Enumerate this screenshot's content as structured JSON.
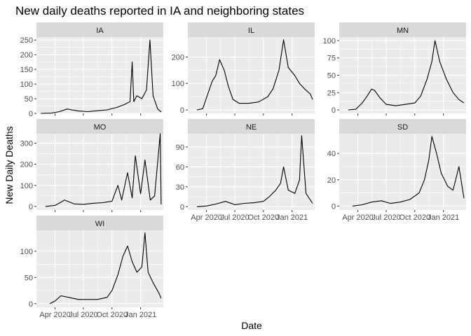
{
  "chart_data": {
    "type": "line",
    "title": "New daily deaths reported in IA and neighboring states",
    "xlabel": "Date",
    "ylabel": "New Daily Deaths",
    "grid": true,
    "legend": "none",
    "x_range": [
      "2020-02-01",
      "2021-03-15"
    ],
    "x_ticks": [
      {
        "date": "2020-04-01",
        "label": "Apr 2020"
      },
      {
        "date": "2020-07-01",
        "label": "Jul 2020"
      },
      {
        "date": "2020-10-01",
        "label": "Oct 2020"
      },
      {
        "date": "2021-01-01",
        "label": "Jan 2021"
      }
    ],
    "panels": [
      {
        "name": "IA",
        "ylim": [
          0,
          260
        ],
        "y_ticks": [
          0,
          50,
          100,
          150,
          200,
          250
        ],
        "series": [
          {
            "date": "2020-02-15",
            "value": 0
          },
          {
            "date": "2020-03-20",
            "value": 1
          },
          {
            "date": "2020-04-15",
            "value": 6
          },
          {
            "date": "2020-05-10",
            "value": 15
          },
          {
            "date": "2020-05-25",
            "value": 12
          },
          {
            "date": "2020-06-15",
            "value": 8
          },
          {
            "date": "2020-07-15",
            "value": 6
          },
          {
            "date": "2020-08-15",
            "value": 9
          },
          {
            "date": "2020-09-15",
            "value": 12
          },
          {
            "date": "2020-10-15",
            "value": 20
          },
          {
            "date": "2020-11-10",
            "value": 30
          },
          {
            "date": "2020-11-28",
            "value": 40
          },
          {
            "date": "2020-12-05",
            "value": 175
          },
          {
            "date": "2020-12-10",
            "value": 40
          },
          {
            "date": "2020-12-20",
            "value": 60
          },
          {
            "date": "2021-01-05",
            "value": 50
          },
          {
            "date": "2021-01-20",
            "value": 80
          },
          {
            "date": "2021-01-31",
            "value": 250
          },
          {
            "date": "2021-02-10",
            "value": 60
          },
          {
            "date": "2021-02-25",
            "value": 15
          },
          {
            "date": "2021-03-08",
            "value": 5
          }
        ]
      },
      {
        "name": "IL",
        "ylim": [
          -13,
          275
        ],
        "y_ticks": [
          0,
          100,
          200
        ],
        "series": [
          {
            "date": "2020-03-01",
            "value": 0
          },
          {
            "date": "2020-03-20",
            "value": 5
          },
          {
            "date": "2020-04-05",
            "value": 60
          },
          {
            "date": "2020-04-20",
            "value": 110
          },
          {
            "date": "2020-05-01",
            "value": 130
          },
          {
            "date": "2020-05-13",
            "value": 190
          },
          {
            "date": "2020-05-28",
            "value": 150
          },
          {
            "date": "2020-06-10",
            "value": 90
          },
          {
            "date": "2020-06-25",
            "value": 40
          },
          {
            "date": "2020-07-15",
            "value": 25
          },
          {
            "date": "2020-08-15",
            "value": 25
          },
          {
            "date": "2020-09-15",
            "value": 30
          },
          {
            "date": "2020-10-15",
            "value": 50
          },
          {
            "date": "2020-11-01",
            "value": 80
          },
          {
            "date": "2020-11-20",
            "value": 150
          },
          {
            "date": "2020-12-05",
            "value": 265
          },
          {
            "date": "2020-12-20",
            "value": 160
          },
          {
            "date": "2021-01-10",
            "value": 130
          },
          {
            "date": "2021-01-25",
            "value": 100
          },
          {
            "date": "2021-02-10",
            "value": 80
          },
          {
            "date": "2021-03-01",
            "value": 60
          },
          {
            "date": "2021-03-08",
            "value": 40
          }
        ]
      },
      {
        "name": "MN",
        "ylim": [
          -5,
          105
        ],
        "y_ticks": [
          0,
          25,
          50,
          75,
          100
        ],
        "series": [
          {
            "date": "2020-03-01",
            "value": 0
          },
          {
            "date": "2020-03-25",
            "value": 1
          },
          {
            "date": "2020-04-15",
            "value": 10
          },
          {
            "date": "2020-05-01",
            "value": 20
          },
          {
            "date": "2020-05-15",
            "value": 30
          },
          {
            "date": "2020-05-25",
            "value": 28
          },
          {
            "date": "2020-06-10",
            "value": 18
          },
          {
            "date": "2020-07-01",
            "value": 8
          },
          {
            "date": "2020-08-01",
            "value": 6
          },
          {
            "date": "2020-09-01",
            "value": 8
          },
          {
            "date": "2020-10-01",
            "value": 10
          },
          {
            "date": "2020-10-20",
            "value": 20
          },
          {
            "date": "2020-11-10",
            "value": 45
          },
          {
            "date": "2020-11-25",
            "value": 70
          },
          {
            "date": "2020-12-05",
            "value": 100
          },
          {
            "date": "2020-12-20",
            "value": 70
          },
          {
            "date": "2021-01-10",
            "value": 45
          },
          {
            "date": "2021-02-01",
            "value": 25
          },
          {
            "date": "2021-02-20",
            "value": 15
          },
          {
            "date": "2021-03-08",
            "value": 10
          }
        ]
      },
      {
        "name": "MO",
        "ylim": [
          -17,
          345
        ],
        "y_ticks": [
          0,
          100,
          200,
          300
        ],
        "series": [
          {
            "date": "2020-03-01",
            "value": 0
          },
          {
            "date": "2020-04-01",
            "value": 5
          },
          {
            "date": "2020-04-20",
            "value": 20
          },
          {
            "date": "2020-05-01",
            "value": 30
          },
          {
            "date": "2020-06-01",
            "value": 12
          },
          {
            "date": "2020-07-01",
            "value": 10
          },
          {
            "date": "2020-08-01",
            "value": 15
          },
          {
            "date": "2020-09-01",
            "value": 18
          },
          {
            "date": "2020-10-01",
            "value": 25
          },
          {
            "date": "2020-10-20",
            "value": 100
          },
          {
            "date": "2020-11-01",
            "value": 30
          },
          {
            "date": "2020-11-20",
            "value": 160
          },
          {
            "date": "2020-12-05",
            "value": 40
          },
          {
            "date": "2020-12-15",
            "value": 240
          },
          {
            "date": "2021-01-01",
            "value": 60
          },
          {
            "date": "2021-01-15",
            "value": 220
          },
          {
            "date": "2021-02-01",
            "value": 30
          },
          {
            "date": "2021-02-15",
            "value": 50
          },
          {
            "date": "2021-03-05",
            "value": 345
          },
          {
            "date": "2021-03-08",
            "value": 10
          }
        ]
      },
      {
        "name": "NE",
        "ylim": [
          -5,
          110
        ],
        "y_ticks": [
          0,
          30,
          60,
          90
        ],
        "series": [
          {
            "date": "2020-03-01",
            "value": 0
          },
          {
            "date": "2020-04-01",
            "value": 1
          },
          {
            "date": "2020-05-01",
            "value": 4
          },
          {
            "date": "2020-06-01",
            "value": 8
          },
          {
            "date": "2020-07-01",
            "value": 3
          },
          {
            "date": "2020-08-01",
            "value": 5
          },
          {
            "date": "2020-09-01",
            "value": 6
          },
          {
            "date": "2020-10-01",
            "value": 8
          },
          {
            "date": "2020-10-20",
            "value": 15
          },
          {
            "date": "2020-11-10",
            "value": 25
          },
          {
            "date": "2020-11-25",
            "value": 35
          },
          {
            "date": "2020-12-05",
            "value": 60
          },
          {
            "date": "2020-12-20",
            "value": 25
          },
          {
            "date": "2021-01-10",
            "value": 20
          },
          {
            "date": "2021-01-25",
            "value": 40
          },
          {
            "date": "2021-02-01",
            "value": 107
          },
          {
            "date": "2021-02-15",
            "value": 20
          },
          {
            "date": "2021-03-08",
            "value": 5
          }
        ]
      },
      {
        "name": "SD",
        "ylim": [
          -3,
          55
        ],
        "y_ticks": [
          0,
          20,
          40
        ],
        "series": [
          {
            "date": "2020-03-15",
            "value": 0
          },
          {
            "date": "2020-04-15",
            "value": 1
          },
          {
            "date": "2020-05-15",
            "value": 3
          },
          {
            "date": "2020-06-15",
            "value": 4
          },
          {
            "date": "2020-07-15",
            "value": 2
          },
          {
            "date": "2020-08-15",
            "value": 3
          },
          {
            "date": "2020-09-15",
            "value": 5
          },
          {
            "date": "2020-10-15",
            "value": 10
          },
          {
            "date": "2020-11-01",
            "value": 20
          },
          {
            "date": "2020-11-15",
            "value": 35
          },
          {
            "date": "2020-11-25",
            "value": 53
          },
          {
            "date": "2020-12-10",
            "value": 40
          },
          {
            "date": "2020-12-25",
            "value": 25
          },
          {
            "date": "2021-01-15",
            "value": 15
          },
          {
            "date": "2021-02-01",
            "value": 12
          },
          {
            "date": "2021-02-20",
            "value": 30
          },
          {
            "date": "2021-03-08",
            "value": 6
          }
        ]
      },
      {
        "name": "WI",
        "ylim": [
          -7,
          140
        ],
        "y_ticks": [
          0,
          50,
          100
        ],
        "series": [
          {
            "date": "2020-03-15",
            "value": 0
          },
          {
            "date": "2020-04-01",
            "value": 5
          },
          {
            "date": "2020-04-20",
            "value": 15
          },
          {
            "date": "2020-05-15",
            "value": 12
          },
          {
            "date": "2020-06-15",
            "value": 8
          },
          {
            "date": "2020-07-15",
            "value": 8
          },
          {
            "date": "2020-08-15",
            "value": 8
          },
          {
            "date": "2020-09-15",
            "value": 12
          },
          {
            "date": "2020-10-01",
            "value": 25
          },
          {
            "date": "2020-10-20",
            "value": 55
          },
          {
            "date": "2020-11-05",
            "value": 90
          },
          {
            "date": "2020-11-20",
            "value": 110
          },
          {
            "date": "2020-12-05",
            "value": 80
          },
          {
            "date": "2020-12-20",
            "value": 60
          },
          {
            "date": "2021-01-05",
            "value": 70
          },
          {
            "date": "2021-01-15",
            "value": 135
          },
          {
            "date": "2021-01-25",
            "value": 60
          },
          {
            "date": "2021-02-10",
            "value": 40
          },
          {
            "date": "2021-03-01",
            "value": 20
          },
          {
            "date": "2021-03-08",
            "value": 10
          }
        ]
      }
    ]
  }
}
